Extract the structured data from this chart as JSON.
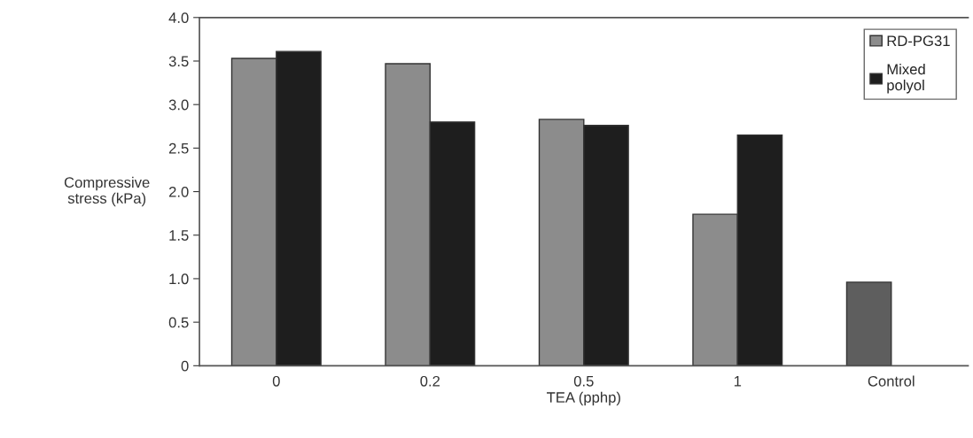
{
  "chart_data": {
    "type": "bar",
    "xlabel": "TEA (pphp)",
    "ylabel": "Compressive\nstress (kPa)",
    "categories": [
      "0",
      "0.2",
      "0.5",
      "1",
      "Control"
    ],
    "series": [
      {
        "name": "RD-PG31",
        "color": "#8c8c8c",
        "colors": [
          "#8c8c8c",
          "#8c8c8c",
          "#8c8c8c",
          "#8c8c8c",
          "#5e5e5e"
        ],
        "values": [
          3.53,
          3.47,
          2.83,
          1.74,
          0.96
        ]
      },
      {
        "name": "Mixed\npolyol",
        "color": "#1e1e1e",
        "values": [
          3.61,
          2.8,
          2.76,
          2.65,
          null
        ]
      }
    ],
    "ylim": [
      0,
      4.0
    ],
    "yticks": [
      0,
      0.5,
      {
        "value": 1,
        "label": "1.0"
      },
      1.5,
      {
        "value": 2,
        "label": "2.0"
      },
      2.5,
      {
        "value": 3,
        "label": "3.0"
      },
      3.5,
      {
        "value": 4,
        "label": "4.0"
      }
    ],
    "grid": false,
    "legend": "top right"
  }
}
